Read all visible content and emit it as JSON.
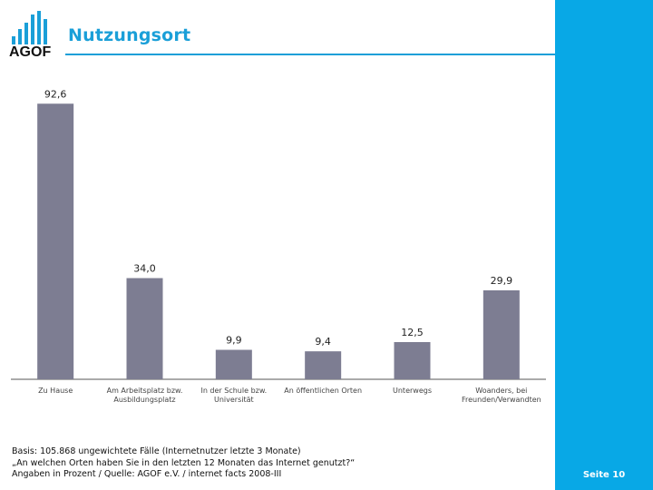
{
  "header": {
    "logo_text": "AGOF",
    "title": "Nutzungsort"
  },
  "colors": {
    "accent": "#1a9fd8",
    "side_band": "#08a8e6",
    "bar": "#7d7d92"
  },
  "chart_data": {
    "type": "bar",
    "title": "Nutzungsort",
    "xlabel": "",
    "ylabel": "",
    "ylim": [
      0,
      100
    ],
    "categories": [
      [
        "Zu Hause"
      ],
      [
        "Am Arbeitsplatz bzw.",
        "Ausbildungsplatz"
      ],
      [
        "In der Schule bzw.",
        "Universität"
      ],
      [
        "An öffentlichen Orten"
      ],
      [
        "Unterwegs"
      ],
      [
        "Woanders, bei",
        "Freunden/Verwandten"
      ]
    ],
    "values": [
      92.6,
      34.0,
      9.9,
      9.4,
      12.5,
      29.9
    ],
    "value_labels": [
      "92,6",
      "34,0",
      "9,9",
      "9,4",
      "12,5",
      "29,9"
    ],
    "unit": "Prozent"
  },
  "footnotes": [
    "Basis: 105.868 ungewichtete Fälle (Internetnutzer letzte 3 Monate)",
    "„An welchen Orten haben Sie in den letzten 12 Monaten das Internet genutzt?“",
    "Angaben in Prozent / Quelle: AGOF e.V. / internet facts 2008-III"
  ],
  "footer": {
    "page_label": "Seite 10"
  }
}
